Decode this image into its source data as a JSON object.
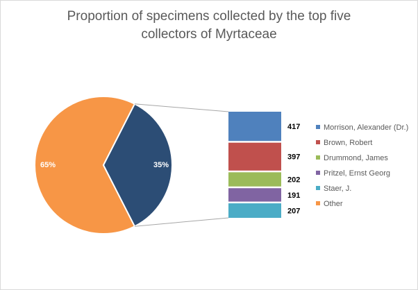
{
  "chart_data": {
    "type": "bar-of-pie",
    "title": "Proportion of specimens collected by the top five collectors of Myrtaceae",
    "series": [
      {
        "name": "Morrison, Alexander (Dr.)",
        "color": "#4f81bd",
        "values": [
          417
        ]
      },
      {
        "name": "Brown, Robert",
        "color": "#c0504d",
        "values": [
          397
        ]
      },
      {
        "name": "Drummond, James",
        "color": "#9bbb59",
        "values": [
          202
        ]
      },
      {
        "name": "Pritzel, Ernst Georg",
        "color": "#8064a2",
        "values": [
          191
        ]
      },
      {
        "name": "Staer, J.",
        "color": "#4bacc6",
        "values": [
          207
        ]
      },
      {
        "name": "Other",
        "color": "#f79646",
        "values": [
          65
        ],
        "value_labels": [
          "65%"
        ]
      }
    ],
    "pie_aggregate": {
      "color": "#2c4d75",
      "values": [
        35
      ],
      "value_labels": [
        "35%"
      ]
    },
    "legend": "right"
  }
}
